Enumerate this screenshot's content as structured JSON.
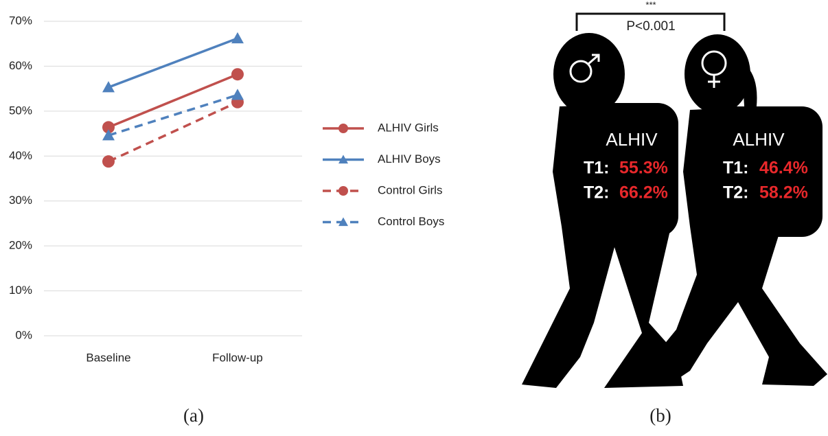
{
  "chart_data": {
    "type": "line",
    "categories": [
      "Baseline",
      "Follow-up"
    ],
    "series": [
      {
        "name": "ALHIV Girls",
        "color": "#c0504d",
        "marker": "circle",
        "line_style": "solid",
        "values": [
          46.4,
          58.2
        ]
      },
      {
        "name": "ALHIV Boys",
        "color": "#4f81bd",
        "marker": "triangle",
        "line_style": "solid",
        "values": [
          55.3,
          66.2
        ]
      },
      {
        "name": "Control Girls",
        "color": "#c0504d",
        "marker": "circle",
        "line_style": "dashed",
        "values": [
          38.8,
          52.0
        ]
      },
      {
        "name": "Control Boys",
        "color": "#4f81bd",
        "marker": "triangle",
        "line_style": "dashed",
        "values": [
          44.6,
          53.6
        ]
      }
    ],
    "ylim": [
      0,
      70
    ],
    "yticks": [
      {
        "value": 0,
        "label": "0%"
      },
      {
        "value": 10,
        "label": "10%"
      },
      {
        "value": 20,
        "label": "20%"
      },
      {
        "value": 30,
        "label": "30%"
      },
      {
        "value": 40,
        "label": "40%"
      },
      {
        "value": 50,
        "label": "50%"
      },
      {
        "value": 60,
        "label": "60%"
      },
      {
        "value": 70,
        "label": "70%"
      }
    ],
    "grid": true,
    "legend": "right",
    "caption": "(a)"
  },
  "panel_b": {
    "significance": "***",
    "p_value": "P<0.001",
    "boy": {
      "group": "ALHIV",
      "t1_label": "T1:",
      "t1": "55.3%",
      "t2_label": "T2:",
      "t2": "66.2%"
    },
    "girl": {
      "group": "ALHIV",
      "t1_label": "T1:",
      "t1": "46.4%",
      "t2_label": "T2:",
      "t2": "58.2%"
    },
    "caption": "(b)"
  }
}
